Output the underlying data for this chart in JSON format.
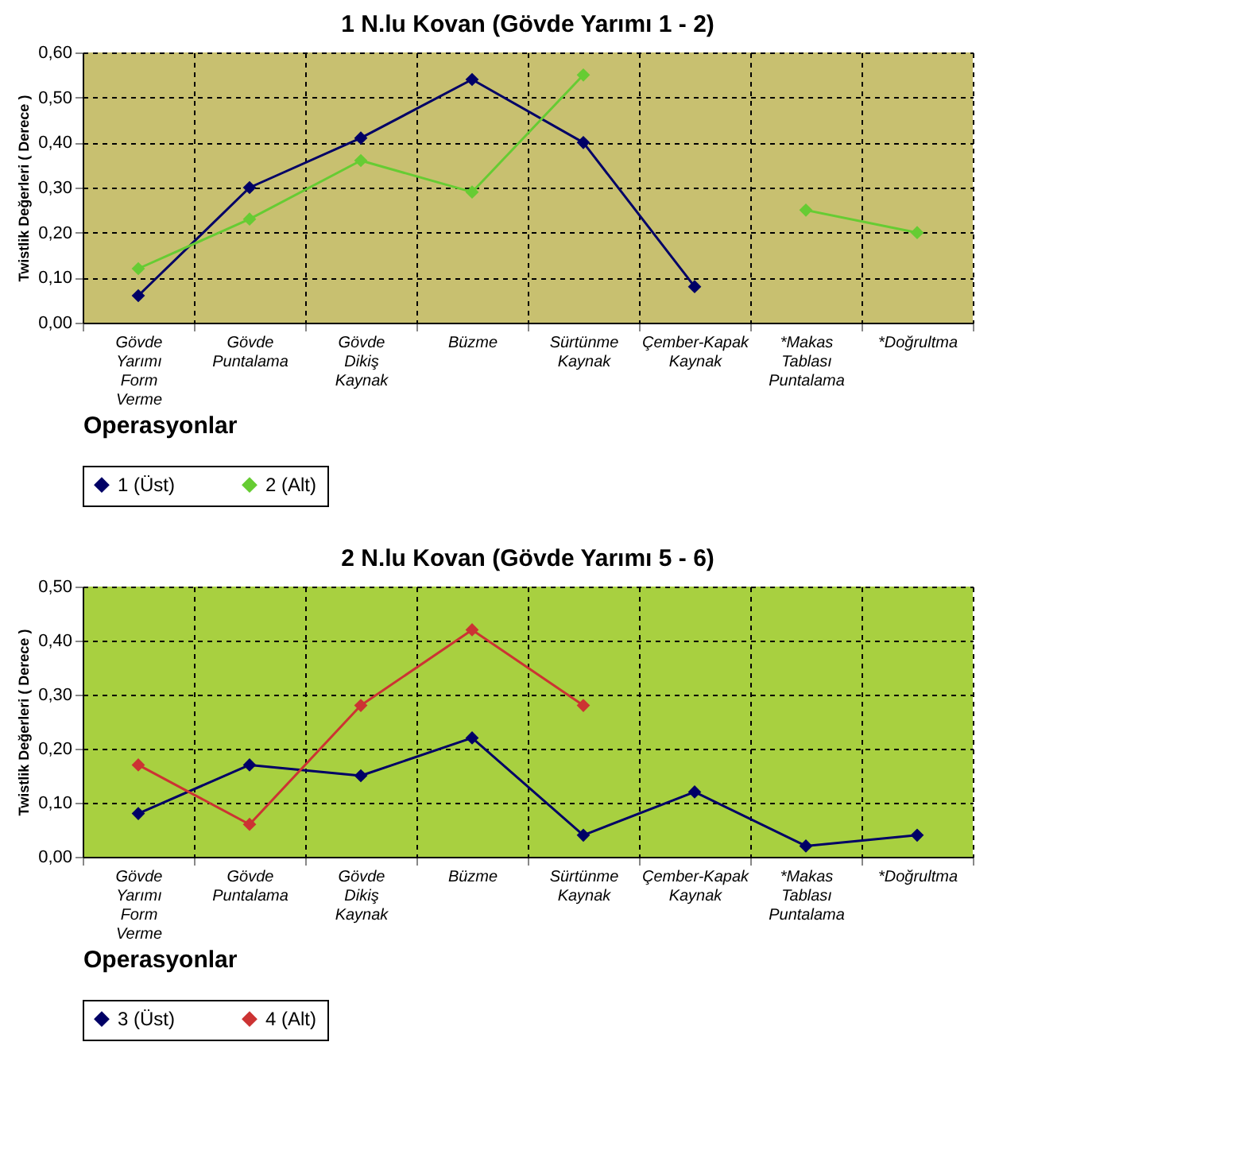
{
  "chart_data": [
    {
      "type": "line",
      "title": "1 N.lu Kovan (Gövde Yarımı 1 - 2)",
      "xlabel": "Operasyonlar",
      "ylabel": "Twistlik Değerleri ( Derece )",
      "categories": [
        "Gövde Yarımı Form Verme",
        "Gövde Puntalama",
        "Gövde Dikiş Kaynak",
        "Büzme",
        "Sürtünme Kaynak",
        "Çember-Kapak Kaynak",
        "*Makas Tablası Puntalama",
        "*Doğrultma"
      ],
      "series": [
        {
          "name": "1 (Üst)",
          "color": "#000066",
          "values": [
            0.06,
            0.3,
            0.41,
            0.54,
            0.4,
            0.08,
            null,
            null
          ]
        },
        {
          "name": "2 (Alt)",
          "color": "#66cc33",
          "values": [
            0.12,
            0.23,
            0.36,
            0.29,
            0.55,
            null,
            0.25,
            0.2
          ]
        }
      ],
      "ylim": [
        0,
        0.6
      ],
      "yticks": [
        {
          "value": 0,
          "label": "0,00"
        },
        {
          "value": 0.1,
          "label": "0,10"
        },
        {
          "value": 0.2,
          "label": "0,20"
        },
        {
          "value": 0.3,
          "label": "0,30"
        },
        {
          "value": 0.4,
          "label": "0,40"
        },
        {
          "value": 0.5,
          "label": "0,50"
        },
        {
          "value": 0.6,
          "label": "0,60"
        }
      ],
      "grid": true,
      "legend": "bottom",
      "marker": "diamond",
      "line_style": "solid"
    },
    {
      "type": "line",
      "title": "2 N.lu Kovan (Gövde Yarımı 5 - 6)",
      "xlabel": "Operasyonlar",
      "ylabel": "Twistlik Değerleri ( Derece )",
      "categories": [
        "Gövde Yarımı Form Verme",
        "Gövde Puntalama",
        "Gövde Dikiş Kaynak",
        "Büzme",
        "Sürtünme Kaynak",
        "Çember-Kapak Kaynak",
        "*Makas Tablası Puntalama",
        "*Doğrultma"
      ],
      "series": [
        {
          "name": "3 (Üst)",
          "color": "#000066",
          "values": [
            0.08,
            0.17,
            0.15,
            0.22,
            0.04,
            0.12,
            0.02,
            0.04
          ]
        },
        {
          "name": "4 (Alt)",
          "color": "#cc3333",
          "values": [
            0.17,
            0.06,
            0.28,
            0.42,
            0.28,
            null,
            null,
            null
          ]
        }
      ],
      "ylim": [
        0,
        0.5
      ],
      "yticks": [
        {
          "value": 0,
          "label": "0,00"
        },
        {
          "value": 0.1,
          "label": "0,10"
        },
        {
          "value": 0.2,
          "label": "0,20"
        },
        {
          "value": 0.3,
          "label": "0,30"
        },
        {
          "value": 0.4,
          "label": "0,40"
        },
        {
          "value": 0.5,
          "label": "0,50"
        }
      ],
      "grid": true,
      "legend": "bottom",
      "marker": "diamond",
      "line_style": "solid"
    }
  ]
}
